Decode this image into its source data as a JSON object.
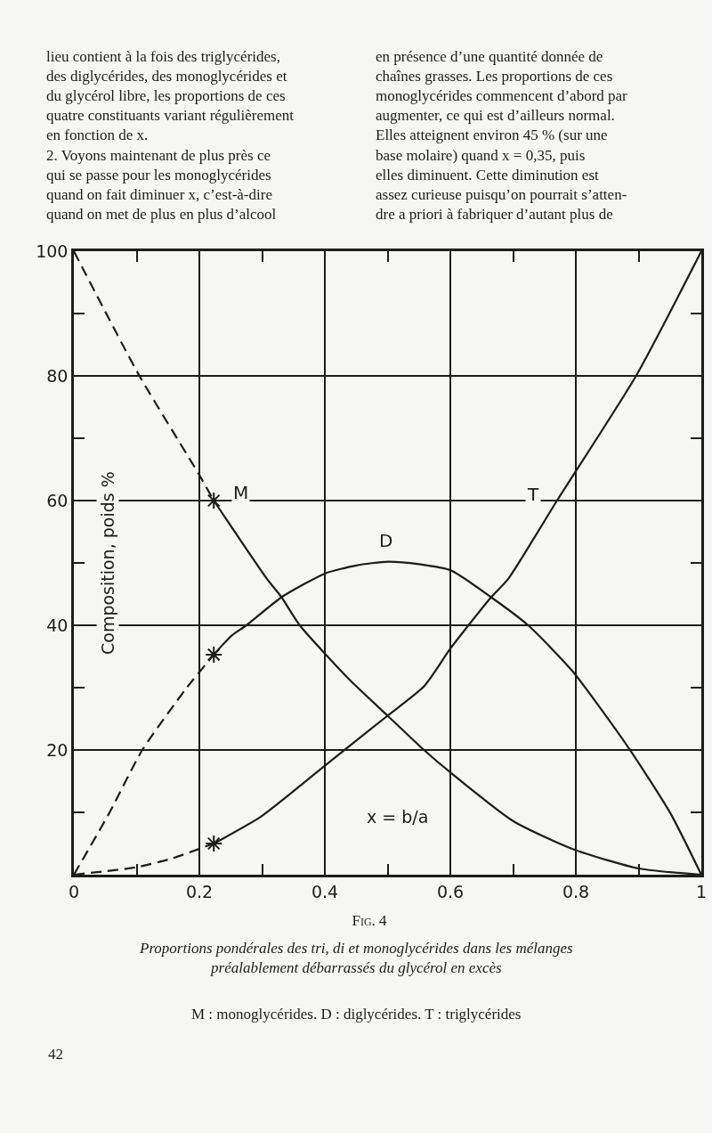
{
  "chart_data": {
    "type": "line",
    "title": "Fig. 4",
    "subtitle": "Proportions pondérales des tri, di et monoglycérides dans les mélanges\npréalablement débarrassés du glycérol en excès",
    "xlabel": "x = b/a",
    "ylabel": "Composition, poids %",
    "annotations": [
      "lieu contient à la fois des triglycérides,\ndes diglycérides, des monoglycérides et\ndu glycérol libre, les proportions de ces\nquatre constituants variant régulièrement\nen fonction de x.\n2. Voyons maintenant de plus près ce\nqui se passe pour les monoglycérides\nquand on fait diminuer x, c’est-à-dire\nquand on met de plus en plus d’alcool",
      "en présence d’une quantité donnée de\nchaînes grasses. Les proportions de ces\nmonoglycérides commencent d’abord par\naugmenter, ce qui est d’ailleurs normal.\nElles atteignent environ 45 % (sur une\nbase molaire) quand x = 0,35, puis\nelles diminuent. Cette diminution est\nassez curieuse puisqu’on pourrait s’atten-\ndre a priori à fabriquer d’autant plus de",
      "M : monoglycérides. D : diglycérides. T : triglycérides",
      "42"
    ],
    "xlim": [
      0,
      1
    ],
    "ylim": [
      0,
      100
    ],
    "xticks": [
      0,
      {
        "value": 0.1,
        "label": null
      },
      0.2,
      {
        "value": 0.3,
        "label": null
      },
      0.4,
      {
        "value": 0.5,
        "label": null
      },
      0.6,
      {
        "value": 0.7,
        "label": null
      },
      0.8,
      {
        "value": 0.9,
        "label": null
      },
      1
    ],
    "yticks": [
      {
        "value": 10,
        "label": null
      },
      20,
      {
        "value": 30,
        "label": null
      },
      40,
      {
        "value": 50,
        "label": null
      },
      60,
      {
        "value": 70,
        "label": null
      },
      80,
      {
        "value": 90,
        "label": null
      },
      100
    ],
    "grid": true,
    "series": [
      {
        "color": "#1c1c1c",
        "line_style": "dashed",
        "x": [
          0,
          0.1045,
          0.2,
          0.223
        ],
        "values": [
          100,
          80,
          64.1,
          60
        ]
      },
      {
        "name": "M",
        "color": "#1c1c1c",
        "line_style": "solid",
        "x": [
          0.223,
          0.308,
          0.331,
          0.36,
          0.44,
          0.5,
          0.558,
          0.6,
          0.7,
          0.795,
          0.9,
          1
        ],
        "values": [
          60,
          47.4,
          44.5,
          40,
          31.2,
          25.5,
          20,
          16.4,
          8.6,
          4.1,
          1.0,
          0
        ]
      },
      {
        "color": "#1c1c1c",
        "line_style": "dashed",
        "x": [
          0,
          0.057,
          0.109,
          0.18,
          0.223
        ],
        "values": [
          0,
          10,
          20,
          30,
          35.3
        ]
      },
      {
        "name": "D",
        "color": "#1c1c1c",
        "line_style": "solid",
        "x": [
          0.223,
          0.251,
          0.275,
          0.331,
          0.4,
          0.45,
          0.5,
          0.55,
          0.601,
          0.665,
          0.724,
          0.795,
          0.885,
          0.951,
          1
        ],
        "values": [
          35.3,
          38.3,
          40,
          44.5,
          48.3,
          49.6,
          50.2,
          49.8,
          48.8,
          44.5,
          40,
          32.6,
          20.2,
          9.8,
          0
        ]
      },
      {
        "color": "#1c1c1c",
        "line_style": "dashed",
        "x": [
          0,
          0.1,
          0.156,
          0.223
        ],
        "values": [
          0,
          1.2,
          2.6,
          5
        ]
      },
      {
        "name": "T",
        "color": "#1c1c1c",
        "line_style": "solid",
        "x": [
          0.223,
          0.298,
          0.393,
          0.44,
          0.5,
          0.558,
          0.601,
          0.665,
          0.692,
          0.77,
          0.896,
          1
        ],
        "values": [
          5,
          9.3,
          16.9,
          20.7,
          25.5,
          30.2,
          36.4,
          44.5,
          47.4,
          60,
          80,
          100
        ]
      },
      {
        "type": "scatter",
        "color": "#1c1c1c",
        "marker": "cross",
        "x": [
          0.223,
          0.223,
          0.223
        ],
        "values": [
          60,
          35.3,
          5
        ]
      }
    ]
  }
}
